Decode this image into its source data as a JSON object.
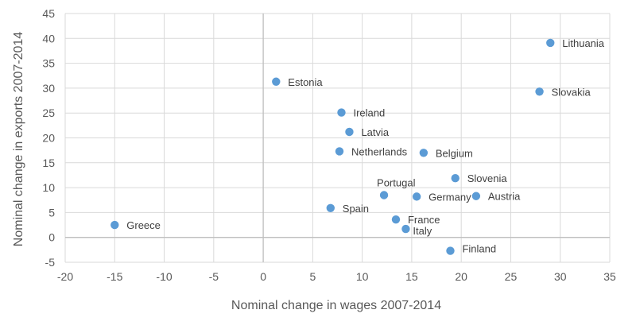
{
  "chart_data": {
    "type": "scatter",
    "title": "",
    "xlabel": "Nominal change in wages 2007-2014",
    "ylabel": "Nominal change in exports 2007-2014",
    "xlim": [
      -20,
      35
    ],
    "ylim": [
      -5,
      45
    ],
    "x_ticks": [
      -20,
      -15,
      -10,
      -5,
      0,
      5,
      10,
      15,
      20,
      25,
      30,
      35
    ],
    "y_ticks": [
      -5,
      0,
      5,
      10,
      15,
      20,
      25,
      30,
      35,
      40,
      45
    ],
    "grid": true,
    "legend": "none",
    "point_color": "#5b9bd5",
    "points": [
      {
        "label": "Lithuania",
        "x": 29.0,
        "y": 39.1
      },
      {
        "label": "Estonia",
        "x": 1.3,
        "y": 31.3
      },
      {
        "label": "Slovakia",
        "x": 27.9,
        "y": 29.3
      },
      {
        "label": "Ireland",
        "x": 7.9,
        "y": 25.1
      },
      {
        "label": "Latvia",
        "x": 8.7,
        "y": 21.2
      },
      {
        "label": "Netherlands",
        "x": 7.7,
        "y": 17.3
      },
      {
        "label": "Belgium",
        "x": 16.2,
        "y": 17.0
      },
      {
        "label": "Slovenia",
        "x": 19.4,
        "y": 11.9
      },
      {
        "label": "Portugal",
        "x": 12.2,
        "y": 8.5
      },
      {
        "label": "Germany",
        "x": 15.5,
        "y": 8.2
      },
      {
        "label": "Austria",
        "x": 21.5,
        "y": 8.3
      },
      {
        "label": "Spain",
        "x": 6.8,
        "y": 5.9
      },
      {
        "label": "France",
        "x": 13.4,
        "y": 3.6
      },
      {
        "label": "Italy",
        "x": 14.4,
        "y": 1.7
      },
      {
        "label": "Greece",
        "x": -15.0,
        "y": 2.5
      },
      {
        "label": "Finland",
        "x": 18.9,
        "y": -2.7
      }
    ]
  }
}
